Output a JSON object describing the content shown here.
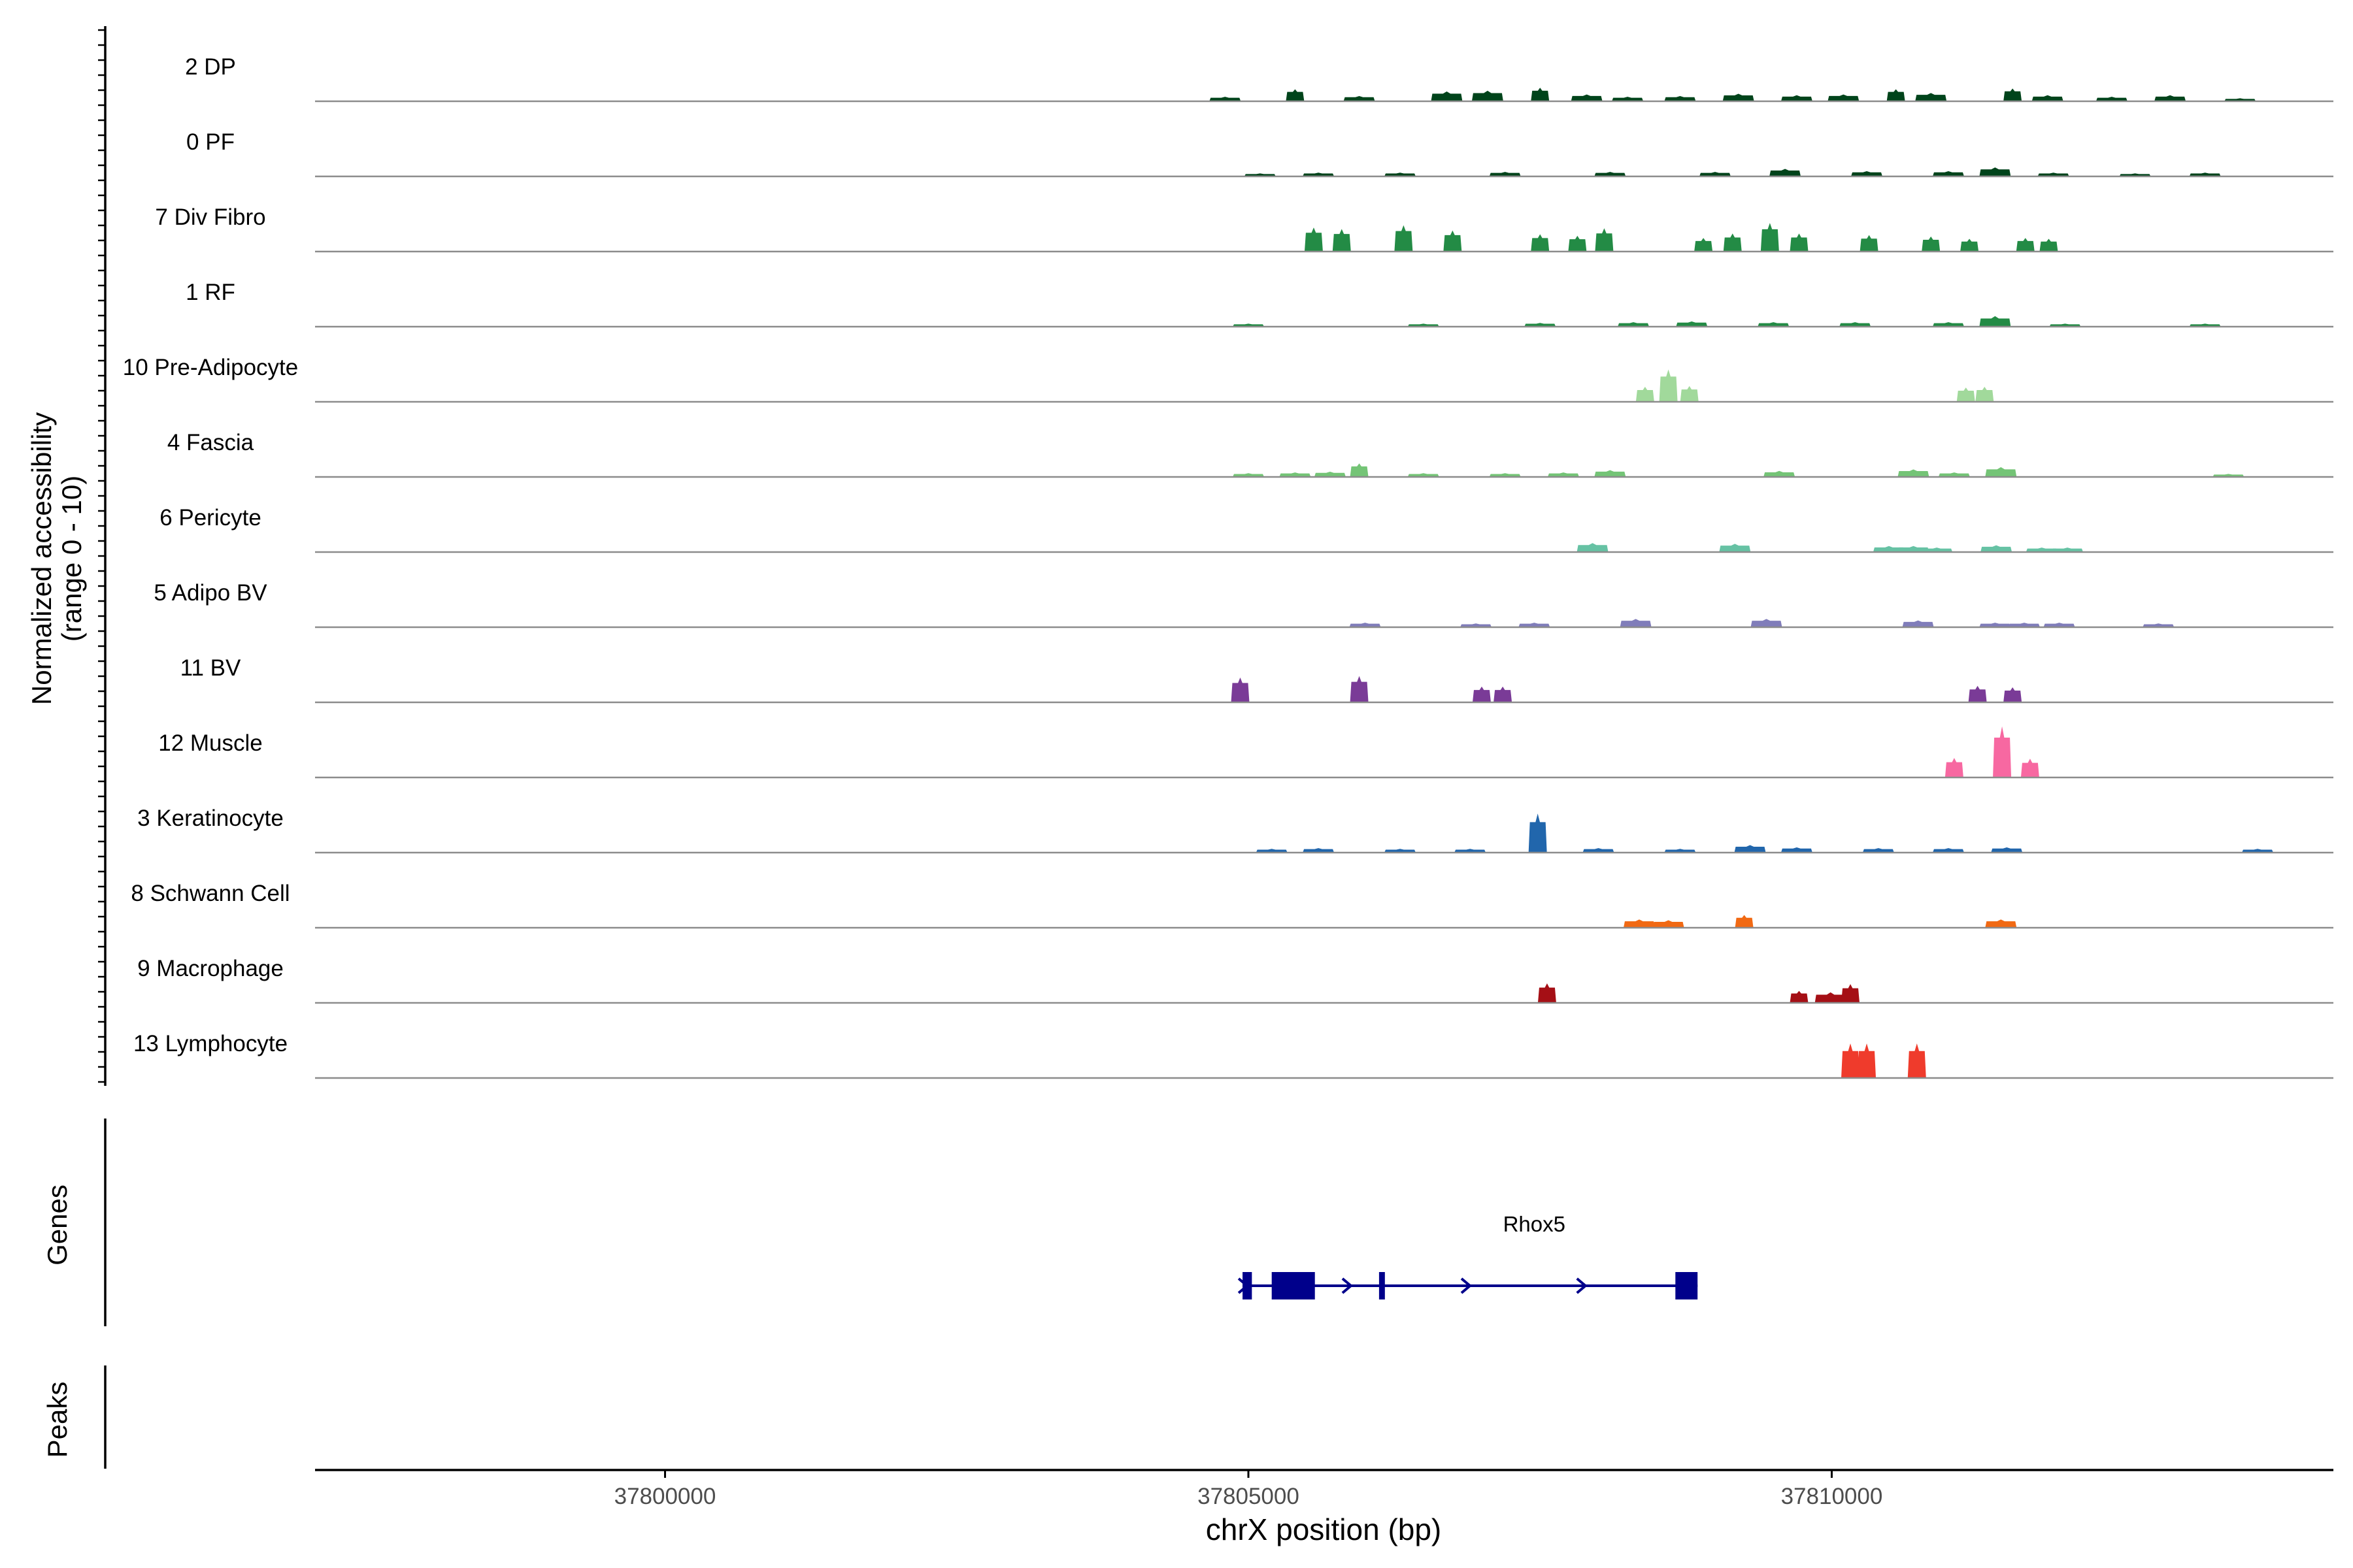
{
  "chart_data": {
    "type": "area",
    "xlabel": "chrX position (bp)",
    "ylabel_line1": "Normalized accessibility",
    "ylabel_line2": "(range 0 - 10)",
    "genes_label": "Genes",
    "peaks_label": "Peaks",
    "xlim": [
      37797000,
      37814300
    ],
    "ylim": [
      0,
      10
    ],
    "x_ticks": [
      37800000,
      37805000,
      37810000
    ],
    "tracks": [
      {
        "name": "2 DP",
        "color": "#00441b",
        "peaks": [
          [
            37804800,
            0.6
          ],
          [
            37805400,
            1.6
          ],
          [
            37805950,
            0.7
          ],
          [
            37806700,
            1.3
          ],
          [
            37807050,
            1.4
          ],
          [
            37807500,
            1.8
          ],
          [
            37807900,
            0.9
          ],
          [
            37808250,
            0.6
          ],
          [
            37808700,
            0.7
          ],
          [
            37809200,
            1.0
          ],
          [
            37809700,
            0.8
          ],
          [
            37810100,
            0.9
          ],
          [
            37810550,
            1.6
          ],
          [
            37810850,
            1.1
          ],
          [
            37811550,
            1.7
          ],
          [
            37811850,
            0.8
          ],
          [
            37812400,
            0.6
          ],
          [
            37812900,
            0.8
          ],
          [
            37813500,
            0.4
          ]
        ]
      },
      {
        "name": "0 PF",
        "color": "#00441b",
        "peaks": [
          [
            37805100,
            0.4
          ],
          [
            37805600,
            0.5
          ],
          [
            37806300,
            0.5
          ],
          [
            37807200,
            0.6
          ],
          [
            37808100,
            0.6
          ],
          [
            37809000,
            0.6
          ],
          [
            37809600,
            1.0
          ],
          [
            37810300,
            0.7
          ],
          [
            37811000,
            0.7
          ],
          [
            37811400,
            1.2
          ],
          [
            37811900,
            0.5
          ],
          [
            37812600,
            0.4
          ],
          [
            37813200,
            0.5
          ]
        ]
      },
      {
        "name": "7 Div Fibro",
        "color": "#238b45",
        "peaks": [
          [
            37805560,
            3.2
          ],
          [
            37805800,
            3.0
          ],
          [
            37806330,
            3.5
          ],
          [
            37806750,
            2.8
          ],
          [
            37807500,
            2.3
          ],
          [
            37807820,
            2.1
          ],
          [
            37808050,
            3.1
          ],
          [
            37808900,
            1.8
          ],
          [
            37809150,
            2.4
          ],
          [
            37809470,
            3.8
          ],
          [
            37809720,
            2.4
          ],
          [
            37810320,
            2.2
          ],
          [
            37810850,
            2.0
          ],
          [
            37811180,
            1.7
          ],
          [
            37811660,
            1.8
          ],
          [
            37811860,
            1.7
          ]
        ]
      },
      {
        "name": "1 RF",
        "color": "#238b45",
        "peaks": [
          [
            37805000,
            0.4
          ],
          [
            37806500,
            0.4
          ],
          [
            37807500,
            0.5
          ],
          [
            37808300,
            0.6
          ],
          [
            37808800,
            0.7
          ],
          [
            37809500,
            0.6
          ],
          [
            37810200,
            0.6
          ],
          [
            37811000,
            0.6
          ],
          [
            37811400,
            1.4
          ],
          [
            37812000,
            0.4
          ],
          [
            37813200,
            0.4
          ]
        ]
      },
      {
        "name": "10 Pre-Adipocyte",
        "color": "#a1d99b",
        "peaks": [
          [
            37808400,
            2.0
          ],
          [
            37808600,
            4.3
          ],
          [
            37808780,
            2.1
          ],
          [
            37811150,
            1.9
          ],
          [
            37811310,
            2.0
          ]
        ]
      },
      {
        "name": "4 Fascia",
        "color": "#74c476",
        "peaks": [
          [
            37805000,
            0.5
          ],
          [
            37805400,
            0.6
          ],
          [
            37805700,
            0.7
          ],
          [
            37805950,
            1.8
          ],
          [
            37806500,
            0.5
          ],
          [
            37807200,
            0.5
          ],
          [
            37807700,
            0.6
          ],
          [
            37808100,
            0.9
          ],
          [
            37809550,
            0.8
          ],
          [
            37810700,
            1.0
          ],
          [
            37811050,
            0.6
          ],
          [
            37811450,
            1.3
          ],
          [
            37813400,
            0.4
          ]
        ]
      },
      {
        "name": "6 Pericyte",
        "color": "#66c2a4",
        "peaks": [
          [
            37807950,
            1.2
          ],
          [
            37809170,
            1.1
          ],
          [
            37810490,
            0.8
          ],
          [
            37810700,
            0.8
          ],
          [
            37810900,
            0.6
          ],
          [
            37811410,
            0.9
          ],
          [
            37811800,
            0.6
          ],
          [
            37812020,
            0.6
          ]
        ]
      },
      {
        "name": "5 Adipo BV",
        "color": "#807dba",
        "peaks": [
          [
            37806000,
            0.6
          ],
          [
            37806950,
            0.5
          ],
          [
            37807450,
            0.6
          ],
          [
            37808320,
            1.1
          ],
          [
            37809440,
            1.1
          ],
          [
            37810740,
            0.9
          ],
          [
            37811400,
            0.6
          ],
          [
            37811650,
            0.6
          ],
          [
            37811950,
            0.6
          ],
          [
            37812800,
            0.5
          ]
        ]
      },
      {
        "name": "11 BV",
        "color": "#7a3b97",
        "peaks": [
          [
            37804930,
            3.3
          ],
          [
            37805950,
            3.5
          ],
          [
            37807000,
            2.1
          ],
          [
            37807180,
            2.1
          ],
          [
            37811250,
            2.2
          ],
          [
            37811550,
            2.0
          ]
        ]
      },
      {
        "name": "12 Muscle",
        "color": "#f768a1",
        "peaks": [
          [
            37811050,
            2.6
          ],
          [
            37811460,
            6.8
          ],
          [
            37811700,
            2.5
          ]
        ]
      },
      {
        "name": "3 Keratinocyte",
        "color": "#2166ac",
        "peaks": [
          [
            37805200,
            0.5
          ],
          [
            37805600,
            0.6
          ],
          [
            37806300,
            0.5
          ],
          [
            37806900,
            0.5
          ],
          [
            37807480,
            5.2
          ],
          [
            37808000,
            0.6
          ],
          [
            37808700,
            0.5
          ],
          [
            37809300,
            1.0
          ],
          [
            37809700,
            0.7
          ],
          [
            37810400,
            0.6
          ],
          [
            37811000,
            0.6
          ],
          [
            37811500,
            0.7
          ],
          [
            37813650,
            0.5
          ]
        ]
      },
      {
        "name": "8 Schwann Cell",
        "color": "#f16913",
        "peaks": [
          [
            37808350,
            1.1
          ],
          [
            37808600,
            1.0
          ],
          [
            37809250,
            1.7
          ],
          [
            37811450,
            1.1
          ]
        ]
      },
      {
        "name": "9 Macrophage",
        "color": "#a50f15",
        "peaks": [
          [
            37807560,
            2.6
          ],
          [
            37809720,
            1.6
          ],
          [
            37809990,
            1.4
          ],
          [
            37810160,
            2.5
          ]
        ]
      },
      {
        "name": "13 Lymphocyte",
        "color": "#ef3b2c",
        "peaks": [
          [
            37810160,
            4.6
          ],
          [
            37810300,
            4.6
          ],
          [
            37810730,
            4.6
          ]
        ]
      }
    ],
    "gene": {
      "name": "Rhox5",
      "color": "#00008b",
      "start": 37804950,
      "end": 37808850,
      "exons": [
        [
          37804950,
          37805030
        ],
        [
          37805200,
          37805570
        ],
        [
          37806120,
          37806170
        ],
        [
          37808660,
          37808850
        ]
      ],
      "arrows": [
        37804950,
        37805840,
        37806860,
        37807850
      ]
    }
  }
}
